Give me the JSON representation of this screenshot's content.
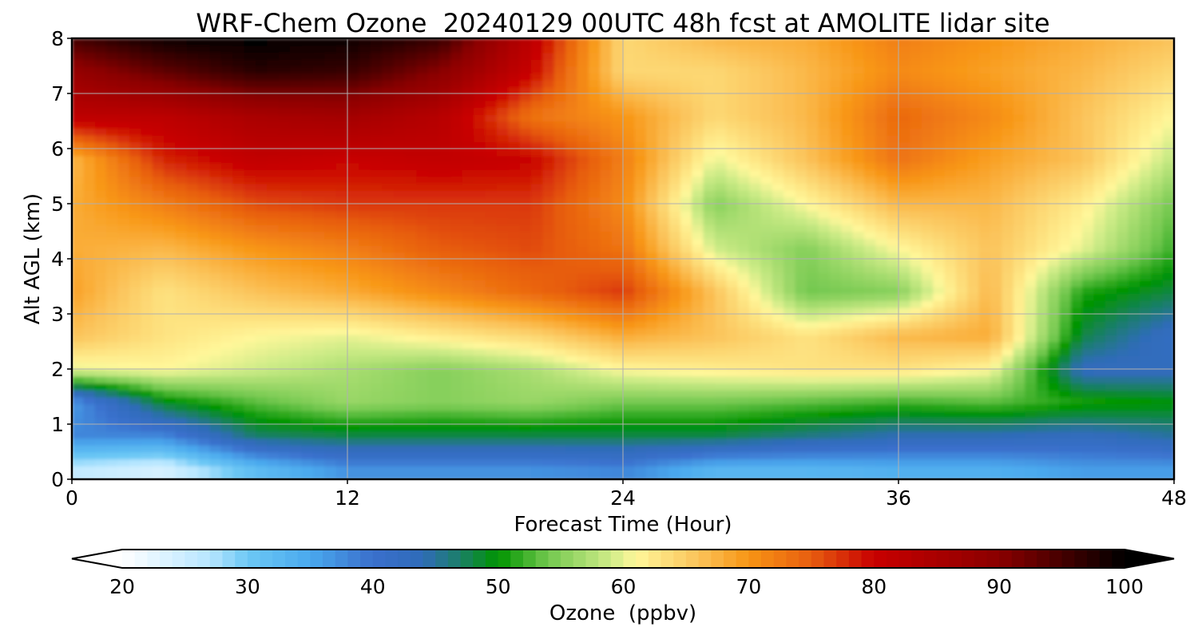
{
  "chart_data": {
    "type": "heatmap",
    "title": "WRF-Chem Ozone  20240129 00UTC 48h fcst at AMOLITE lidar site",
    "xlabel": "Forecast Time (Hour)",
    "ylabel": "Alt AGL (km)",
    "xlim": [
      0,
      48
    ],
    "ylim": [
      0,
      8
    ],
    "xticks": [
      0,
      12,
      24,
      36,
      48
    ],
    "yticks": [
      0,
      1,
      2,
      3,
      4,
      5,
      6,
      7,
      8
    ],
    "grid": true,
    "x": [
      0,
      4,
      8,
      12,
      16,
      20,
      24,
      28,
      32,
      36,
      40,
      44,
      48
    ],
    "y": [
      0.2,
      0.8,
      1.4,
      2.0,
      2.6,
      3.4,
      4.2,
      5.0,
      5.8,
      6.6,
      7.4,
      8.0
    ],
    "z": [
      [
        26,
        24,
        32,
        37,
        37,
        37,
        38,
        33,
        33,
        34,
        34,
        36,
        36
      ],
      [
        38,
        38,
        47,
        48,
        48,
        48,
        48,
        48,
        46,
        44,
        44,
        43,
        45
      ],
      [
        36,
        49,
        53,
        56,
        55,
        56,
        54,
        54,
        53,
        52,
        53,
        51,
        50
      ],
      [
        60,
        61,
        59,
        57,
        55,
        57,
        61,
        62,
        63,
        63,
        61,
        43,
        43
      ],
      [
        66,
        63,
        61,
        60,
        62,
        64,
        68,
        66,
        63,
        67,
        68,
        48,
        42
      ],
      [
        69,
        63,
        66,
        68,
        71,
        74,
        77,
        66,
        54,
        55,
        67,
        51,
        48
      ],
      [
        68,
        67,
        70,
        72,
        75,
        76,
        73,
        59,
        55,
        61,
        66,
        60,
        52
      ],
      [
        68,
        72,
        76,
        77,
        77,
        77,
        71,
        55,
        61,
        67,
        67,
        62,
        54
      ],
      [
        67,
        78,
        81,
        80,
        81,
        80,
        72,
        60,
        66,
        73,
        69,
        66,
        58
      ],
      [
        82,
        82,
        85,
        86,
        83,
        73,
        70,
        64,
        67,
        74,
        71,
        66,
        61
      ],
      [
        88,
        93,
        97,
        96,
        90,
        80,
        64,
        64,
        67,
        71,
        69,
        67,
        64
      ],
      [
        95,
        99,
        100,
        99,
        96,
        82,
        64,
        67,
        68,
        72,
        70,
        68,
        66
      ]
    ],
    "colorbar": {
      "label": "Ozone  (ppbv)",
      "min": 20,
      "max": 100,
      "ticks": [
        20,
        30,
        40,
        50,
        60,
        70,
        80,
        90,
        100
      ],
      "extend": "both"
    },
    "colormap": [
      [
        20,
        "#ffffff"
      ],
      [
        27,
        "#b7e6ff"
      ],
      [
        30,
        "#6cc8f5"
      ],
      [
        35,
        "#4aa9ee"
      ],
      [
        40,
        "#3a6fcc"
      ],
      [
        44,
        "#2f6cb8"
      ],
      [
        47,
        "#1a7f66"
      ],
      [
        50,
        "#009400"
      ],
      [
        54,
        "#73c84f"
      ],
      [
        59,
        "#cfec88"
      ],
      [
        61,
        "#fff79a"
      ],
      [
        66,
        "#fbc35a"
      ],
      [
        70,
        "#f89514"
      ],
      [
        75,
        "#e75d10"
      ],
      [
        80,
        "#c80000"
      ],
      [
        90,
        "#8a0000"
      ],
      [
        100,
        "#000000"
      ]
    ]
  }
}
